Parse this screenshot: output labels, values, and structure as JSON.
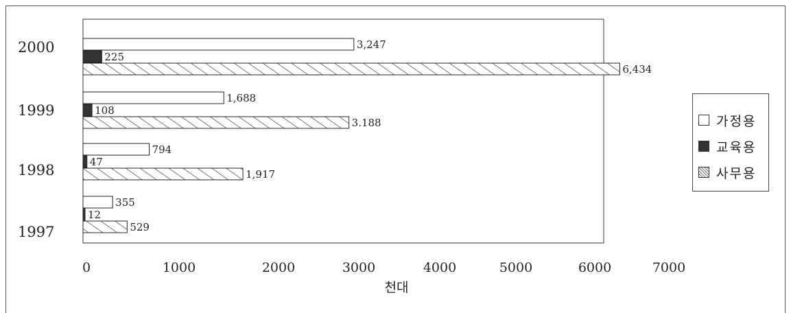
{
  "chart_data": {
    "type": "bar",
    "orientation": "horizontal",
    "categories": [
      "2000",
      "1999",
      "1998",
      "1997"
    ],
    "series": [
      {
        "name": "가정용",
        "values": [
          3247,
          1688,
          794,
          355
        ],
        "labels": [
          "3,247",
          "1,688",
          "794",
          "355"
        ],
        "fill": "#ffffff",
        "pattern": "none"
      },
      {
        "name": "교육용",
        "values": [
          225,
          108,
          47,
          12
        ],
        "labels": [
          "225",
          "108",
          "47",
          "12"
        ],
        "fill": "#333333",
        "pattern": "solid"
      },
      {
        "name": "사무용",
        "values": [
          6434,
          3188,
          1917,
          529
        ],
        "labels": [
          "6,434",
          "3.188",
          "1,917",
          "529"
        ],
        "fill": "#ffffff",
        "pattern": "diagonal-hatch"
      }
    ],
    "xlabel": "천대",
    "xlim": [
      0,
      7000
    ],
    "xticks": [
      "0",
      "1000",
      "2000",
      "3000",
      "4000",
      "5000",
      "6000",
      "7000"
    ],
    "grid": false,
    "legend_position": "right"
  },
  "legend": {
    "items": [
      {
        "label": "가정용"
      },
      {
        "label": "교육용"
      },
      {
        "label": "사무용"
      }
    ]
  }
}
